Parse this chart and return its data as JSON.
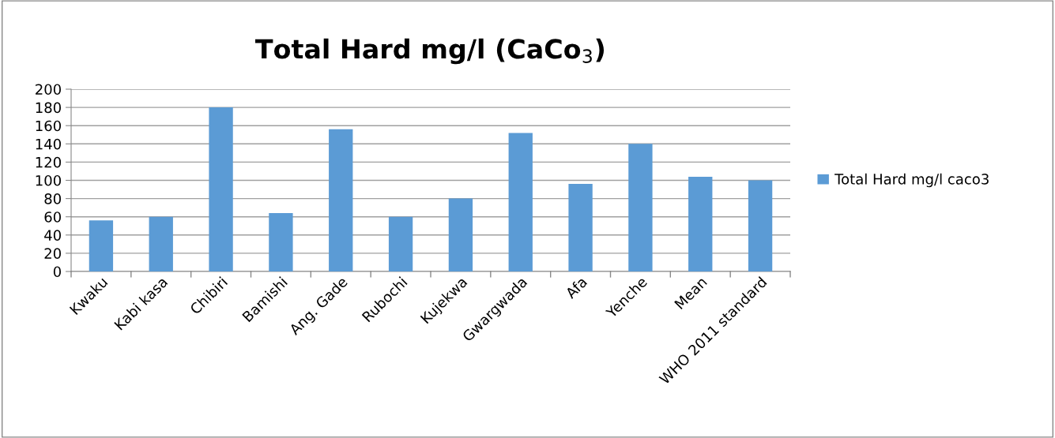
{
  "chart_data": {
    "type": "bar",
    "title": "Total Hard mg/l (CaCo$_{3}$)",
    "categories": [
      "Kwaku",
      "Kabi kasa",
      "Chibiri",
      "Bamishi",
      "Ang. Gade",
      "Rubochi",
      "Kujekwa",
      "Gwargwada",
      "Afa",
      "Yenche",
      "Mean",
      "WHO 2011 standard"
    ],
    "series": [
      {
        "name": "Total Hard mg/l caco3",
        "color": "#5b9bd5",
        "values": [
          56,
          60,
          180,
          64,
          156,
          60,
          80,
          152,
          96,
          140,
          104,
          100
        ]
      }
    ],
    "ylim": [
      0,
      200
    ],
    "yticks": [
      0,
      20,
      40,
      60,
      80,
      100,
      120,
      140,
      160,
      180,
      200
    ],
    "grid": "y",
    "legend": "right"
  }
}
